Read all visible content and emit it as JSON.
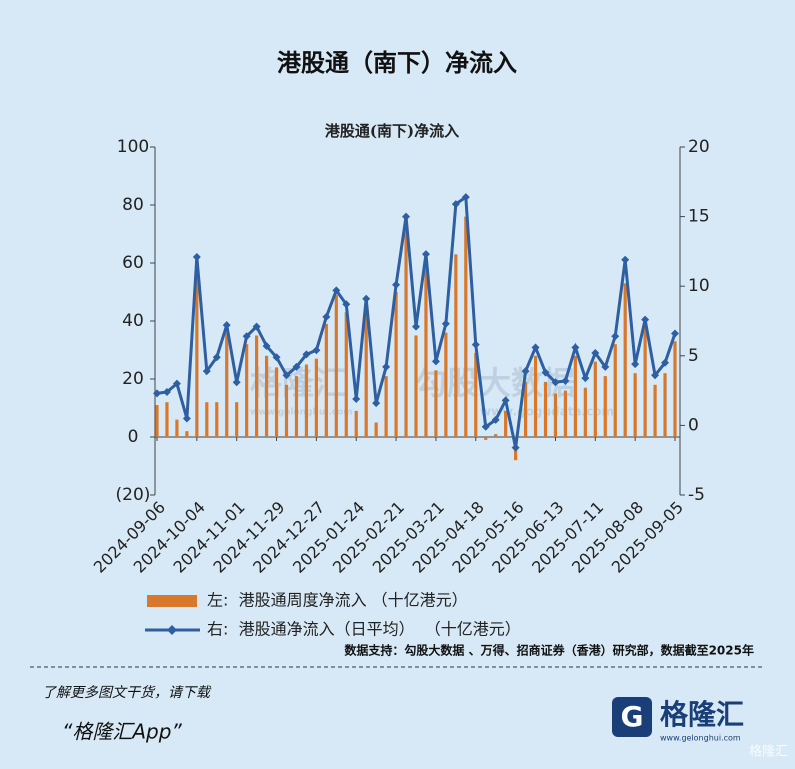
{
  "page": {
    "title": "港股通（南下）净流入",
    "watermarks": [
      "格隆汇",
      "勾股大数据",
      "www.gelonghui.com",
      "www.gogudata.com"
    ],
    "source": "数据支持：勾股大数据 、万得、招商证券（香港）研究部，数据截至2025年",
    "footer_prompt": "了解更多图文干货，请下载",
    "footer_app": "“格隆汇App”",
    "logo_text": "格隆汇",
    "logo_url": "www.gelonghui.com",
    "corner_mark": "格隆汇"
  },
  "chart_data": {
    "type": "combo",
    "title": "港股通(南下)净流入",
    "categories": [
      "2024-09-06",
      null,
      null,
      null,
      "2024-10-04",
      null,
      null,
      null,
      "2024-11-01",
      null,
      null,
      null,
      "2024-11-29",
      null,
      null,
      null,
      "2024-12-27",
      null,
      null,
      null,
      "2025-01-24",
      null,
      null,
      null,
      "2025-02-21",
      null,
      null,
      null,
      "2025-03-21",
      null,
      null,
      null,
      "2025-04-18",
      null,
      null,
      null,
      "2025-05-16",
      null,
      null,
      null,
      "2025-06-13",
      null,
      null,
      null,
      "2025-07-11",
      null,
      null,
      null,
      "2025-08-08",
      null,
      null,
      null,
      "2025-09-05"
    ],
    "series": [
      {
        "name": "左:  港股通周度净流入 （十亿港元）",
        "type": "bar",
        "color": "#d9782a",
        "values": [
          11,
          12,
          6,
          2,
          62,
          12,
          12,
          36,
          12,
          32,
          35,
          28,
          24,
          18,
          21,
          25,
          27,
          39,
          49,
          43,
          9,
          45,
          5,
          21,
          50,
          74,
          35,
          61,
          23,
          36,
          63,
          76,
          29,
          -1,
          1,
          9,
          -8,
          19,
          28,
          19,
          15,
          16,
          28,
          17,
          26,
          21,
          32,
          53,
          22,
          38,
          18,
          22,
          33
        ]
      },
      {
        "name": "右:  港股通净流入（日平均）  （十亿港元）",
        "type": "line",
        "axis": "y2",
        "color": "#2e5fa3",
        "values": [
          2.3,
          2.4,
          3.0,
          0.5,
          12.1,
          3.9,
          4.9,
          7.2,
          3.1,
          6.4,
          7.1,
          5.7,
          4.9,
          3.6,
          4.2,
          5.1,
          5.4,
          7.8,
          9.7,
          8.7,
          1.9,
          9.1,
          1.6,
          4.2,
          10.1,
          15.0,
          7.1,
          12.3,
          4.6,
          7.3,
          15.9,
          16.4,
          5.8,
          -0.1,
          0.4,
          1.8,
          -1.6,
          3.9,
          5.6,
          3.8,
          3.1,
          3.2,
          5.6,
          3.4,
          5.2,
          4.2,
          6.4,
          11.9,
          4.4,
          7.6,
          3.6,
          4.5,
          6.6
        ]
      }
    ],
    "ylim": [
      -20,
      100
    ],
    "yticks": [
      100,
      80,
      60,
      40,
      20,
      0,
      {
        "value": -20,
        "label": "(20)"
      }
    ],
    "y2lim": [
      -5,
      20
    ],
    "y2ticks": [
      20,
      15,
      10,
      5,
      0,
      -5
    ]
  }
}
